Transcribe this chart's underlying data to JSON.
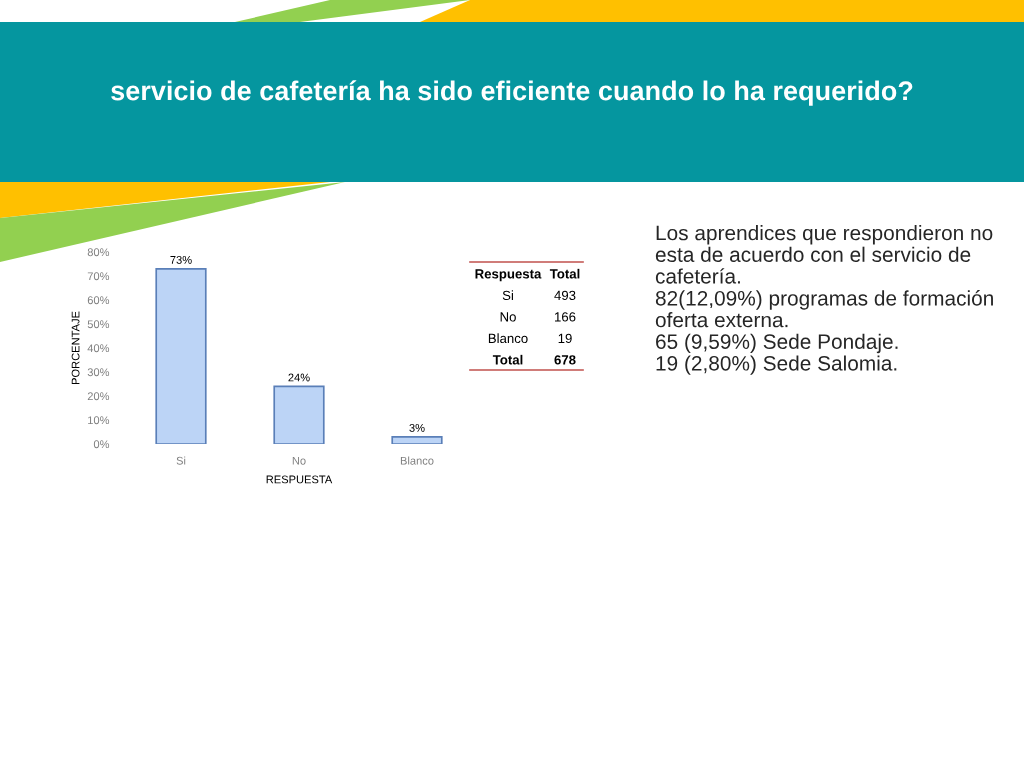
{
  "chart_data": [
    {
      "type": "bar",
      "title": "servicio de cafetería ha sido eficiente cuando lo ha requerido?",
      "categories": [
        "Si",
        "No",
        "Blanco"
      ],
      "values": [
        73,
        24,
        3
      ],
      "value_labels": [
        "73%",
        "24%",
        "3%"
      ],
      "color": "#bcd4f6",
      "xlabel": "RESPUESTA",
      "ylabel": "PORCENTAJE",
      "ylim": [
        0,
        80
      ],
      "yticks": [
        {
          "value": 0,
          "label": "0%"
        },
        {
          "value": 10,
          "label": "10%"
        },
        {
          "value": 20,
          "label": "20%"
        },
        {
          "value": 30,
          "label": "30%"
        },
        {
          "value": 40,
          "label": "40%"
        },
        {
          "value": 50,
          "label": "50%"
        },
        {
          "value": 60,
          "label": "60%"
        },
        {
          "value": 70,
          "label": "70%"
        },
        {
          "value": 80,
          "label": "80%"
        }
      ],
      "annotations": [
        "Respuesta",
        "Total",
        "Si",
        "493",
        "No",
        "166",
        "Blanco",
        "19",
        "Total",
        "678"
      ]
    },
    {
      "type": "other",
      "annotations": [
        "Los aprendices que respondieron no esta de acuerdo con el servicio de cafetería.",
        "82(12,09%) programas de formación oferta externa.",
        "65 (9,59%) Sede Pondaje.",
        "19 (2,80%) Sede Salomia."
      ]
    }
  ]
}
